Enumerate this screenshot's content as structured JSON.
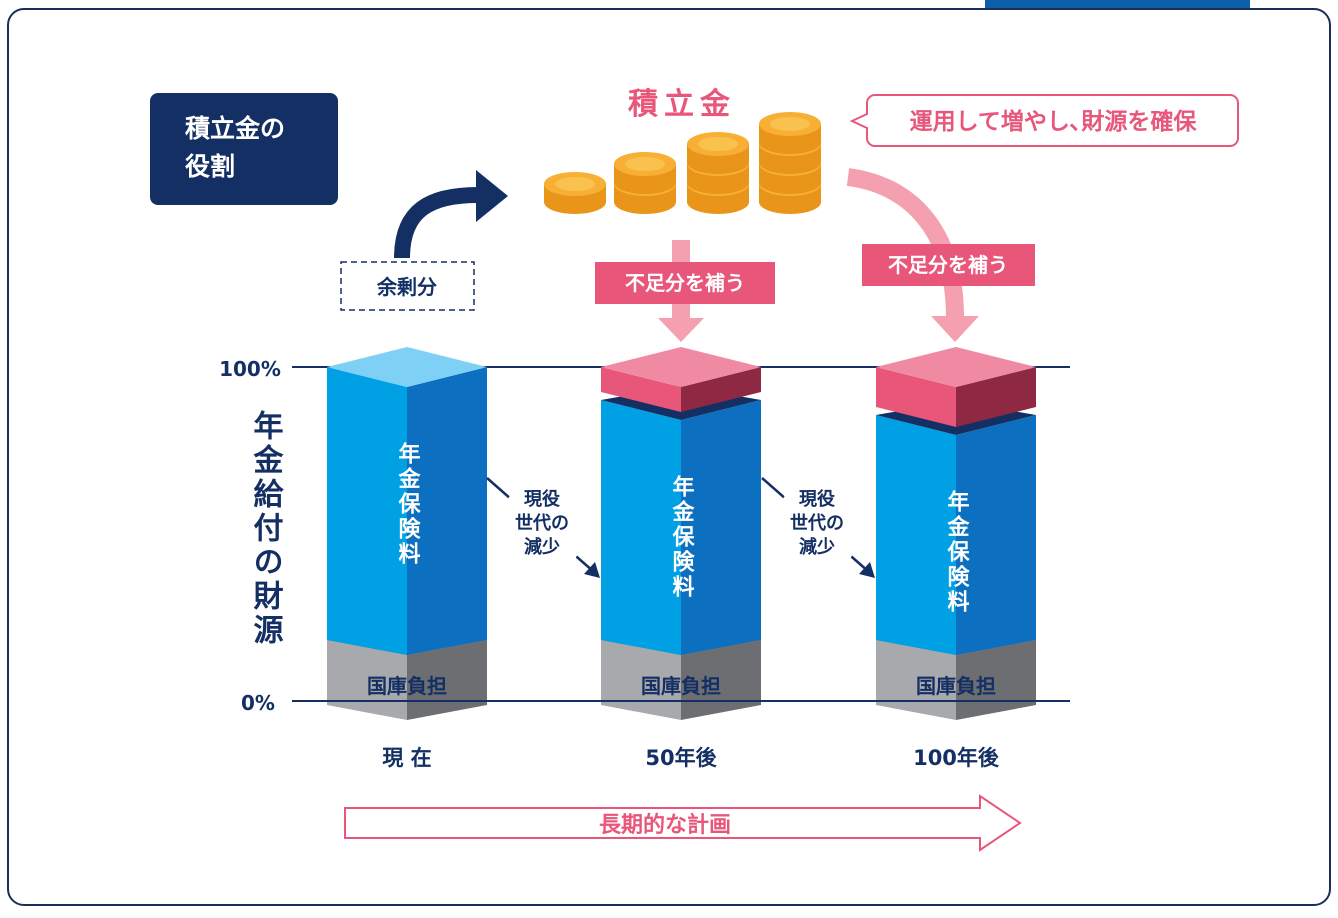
{
  "title": {
    "line1": "積立金の",
    "line2": "役割"
  },
  "reserve": {
    "label": "積立金",
    "bubble": "運用して増やし､財源を確保"
  },
  "surplus": "余剰分",
  "supplement": [
    "不足分を補う",
    "不足分を補う"
  ],
  "axis": {
    "top": "100%",
    "bottom": "0%",
    "label": "年金給付の財源"
  },
  "columns": [
    {
      "label": "現 在",
      "premium": "年金保険料",
      "subsidy": "国庫負担"
    },
    {
      "label": "50年後",
      "premium": "年金保険料",
      "subsidy": "国庫負担"
    },
    {
      "label": "100年後",
      "premium": "年金保険料",
      "subsidy": "国庫負担"
    }
  ],
  "decline": [
    {
      "lines": [
        "現役",
        "世代の",
        "減少"
      ]
    },
    {
      "lines": [
        "現役",
        "世代の",
        "減少"
      ]
    }
  ],
  "plan": "長期的な計画"
}
